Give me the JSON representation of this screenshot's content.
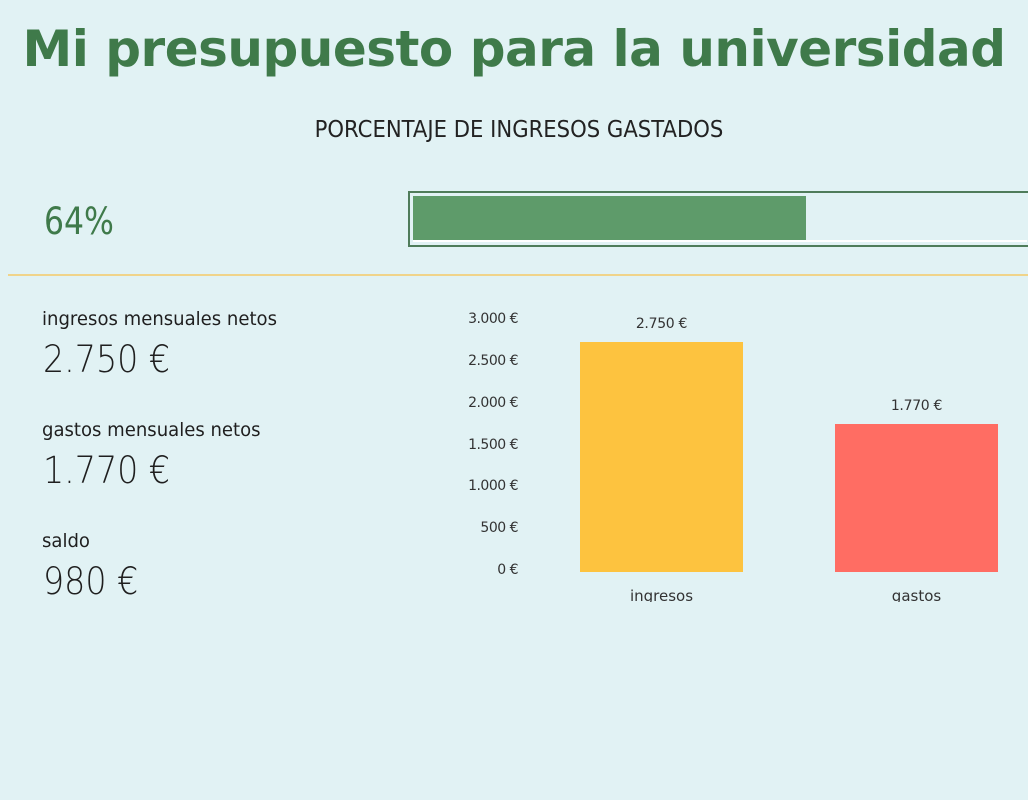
{
  "header": {
    "title": "Mi presupuesto para la universidad",
    "subtitle": "PORCENTAJE DE INGRESOS GASTADOS"
  },
  "progress": {
    "percent_label": "64%",
    "percent_value": 64,
    "fill_color": "#5e9b6a",
    "border_color": "#4f7c5a"
  },
  "metrics": [
    {
      "label": "ingresos mensuales netos",
      "value": "2.750 €"
    },
    {
      "label": "gastos mensuales netos",
      "value": "1.770 €"
    },
    {
      "label": "saldo",
      "value": "980 €"
    }
  ],
  "colors": {
    "background": "#e1f2f4",
    "title": "#3f7a4a",
    "divider": "#f0d48a",
    "ingresos_bar": "#fdc33f",
    "gastos_bar": "#ff6d63"
  },
  "chart_data": {
    "type": "bar",
    "title": "",
    "xlabel": "",
    "ylabel": "",
    "categories": [
      "ingresos",
      "gastos"
    ],
    "values": [
      2750,
      1770
    ],
    "value_labels": [
      "2.750 €",
      "1.770 €"
    ],
    "bar_colors": [
      "#fdc33f",
      "#ff6d63"
    ],
    "ylim": [
      0,
      3000
    ],
    "yticks": [
      0,
      500,
      1000,
      1500,
      2000,
      2500,
      3000
    ],
    "ytick_labels": [
      "0 €",
      "500 €",
      "1.000 €",
      "1.500 €",
      "2.000 €",
      "2.500 €",
      "3.000 €"
    ],
    "grid": false,
    "legend": "none"
  }
}
